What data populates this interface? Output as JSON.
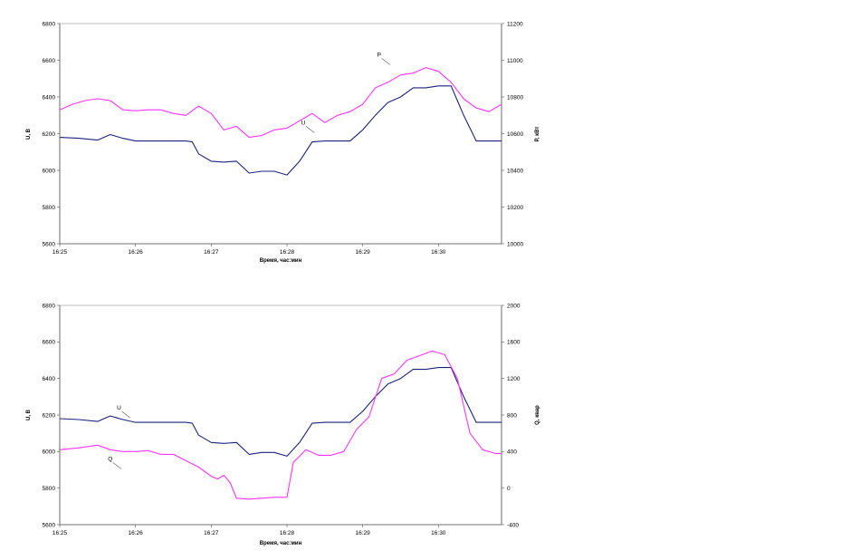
{
  "chart_data": [
    {
      "type": "line",
      "title": "",
      "xlabel": "Время, час:мин",
      "ylabel_left": "U, В",
      "ylabel_right": "P, кВт",
      "x_ticks": [
        "16:25",
        "16:26",
        "16:27",
        "16:28",
        "16:29",
        "16:30"
      ],
      "x_range_minutes": [
        0,
        5.833
      ],
      "ylim_left": [
        5600,
        6800
      ],
      "ylim_right": [
        10000,
        11200
      ],
      "y_ticks_left": [
        "5600",
        "5800",
        "6000",
        "6200",
        "6400",
        "6600",
        "6800"
      ],
      "y_ticks_right": [
        "10000",
        "10200",
        "10400",
        "10600",
        "10800",
        "11000",
        "11200"
      ],
      "grid": false,
      "series": [
        {
          "name": "U",
          "axis": "left",
          "color": "#1a237e",
          "x": [
            "16:25:00",
            "16:25:15",
            "16:25:30",
            "16:25:40",
            "16:25:50",
            "16:26:00",
            "16:26:10",
            "16:26:20",
            "16:26:30",
            "16:26:40",
            "16:26:45",
            "16:26:50",
            "16:27:00",
            "16:27:10",
            "16:27:20",
            "16:27:30",
            "16:27:40",
            "16:27:50",
            "16:28:00",
            "16:28:10",
            "16:28:20",
            "16:28:30",
            "16:28:40",
            "16:28:50",
            "16:29:00",
            "16:29:10",
            "16:29:20",
            "16:29:30",
            "16:29:40",
            "16:29:50",
            "16:30:00",
            "16:30:10",
            "16:30:20",
            "16:30:30",
            "16:30:40",
            "16:30:50"
          ],
          "values": [
            6180,
            6175,
            6165,
            6195,
            6175,
            6160,
            6160,
            6160,
            6160,
            6160,
            6155,
            6090,
            6050,
            6045,
            6050,
            5985,
            5995,
            5995,
            5975,
            6050,
            6155,
            6160,
            6160,
            6160,
            6220,
            6300,
            6370,
            6400,
            6450,
            6450,
            6460,
            6460,
            6300,
            6160,
            6160,
            6160
          ]
        },
        {
          "name": "P",
          "axis": "right",
          "color": "#ff33ff",
          "x": [
            "16:25:00",
            "16:25:10",
            "16:25:20",
            "16:25:30",
            "16:25:40",
            "16:25:50",
            "16:26:00",
            "16:26:10",
            "16:26:20",
            "16:26:30",
            "16:26:40",
            "16:26:50",
            "16:27:00",
            "16:27:10",
            "16:27:20",
            "16:27:30",
            "16:27:40",
            "16:27:50",
            "16:28:00",
            "16:28:10",
            "16:28:20",
            "16:28:30",
            "16:28:40",
            "16:28:50",
            "16:29:00",
            "16:29:10",
            "16:29:20",
            "16:29:30",
            "16:29:40",
            "16:29:50",
            "16:30:00",
            "16:30:10",
            "16:30:20",
            "16:30:30",
            "16:30:40",
            "16:30:50"
          ],
          "values": [
            10730,
            10760,
            10780,
            10790,
            10780,
            10730,
            10725,
            10730,
            10730,
            10710,
            10700,
            10750,
            10710,
            10620,
            10640,
            10580,
            10590,
            10620,
            10630,
            10670,
            10710,
            10660,
            10700,
            10720,
            10760,
            10850,
            10880,
            10920,
            10930,
            10960,
            10940,
            10880,
            10790,
            10740,
            10720,
            10760
          ]
        }
      ],
      "annotations": [
        {
          "text": "P",
          "x": "16:29:13",
          "y_right": 11020
        },
        {
          "text": "U",
          "x": "16:28:13",
          "y_left": 6250
        }
      ]
    },
    {
      "type": "line",
      "title": "",
      "xlabel": "Время, час:мин",
      "ylabel_left": "U, В",
      "ylabel_right": "Q, квар",
      "x_ticks": [
        "16:25",
        "16:26",
        "16:27",
        "16:28",
        "16:29",
        "16:30"
      ],
      "x_range_minutes": [
        0,
        5.833
      ],
      "ylim_left": [
        5600,
        6800
      ],
      "ylim_right": [
        -400,
        2000
      ],
      "y_ticks_left": [
        "5600",
        "5800",
        "6000",
        "6200",
        "6400",
        "6600",
        "6800"
      ],
      "y_ticks_right": [
        "-400",
        "0",
        "400",
        "800",
        "1200",
        "1600",
        "2000"
      ],
      "grid": false,
      "series": [
        {
          "name": "U",
          "axis": "left",
          "color": "#1a237e",
          "x": [
            "16:25:00",
            "16:25:15",
            "16:25:30",
            "16:25:40",
            "16:25:50",
            "16:26:00",
            "16:26:10",
            "16:26:20",
            "16:26:30",
            "16:26:40",
            "16:26:45",
            "16:26:50",
            "16:27:00",
            "16:27:10",
            "16:27:20",
            "16:27:30",
            "16:27:40",
            "16:27:50",
            "16:28:00",
            "16:28:10",
            "16:28:20",
            "16:28:30",
            "16:28:40",
            "16:28:50",
            "16:29:00",
            "16:29:10",
            "16:29:20",
            "16:29:30",
            "16:29:40",
            "16:29:50",
            "16:30:00",
            "16:30:10",
            "16:30:20",
            "16:30:30",
            "16:30:40",
            "16:30:50"
          ],
          "values": [
            6180,
            6175,
            6165,
            6195,
            6175,
            6160,
            6160,
            6160,
            6160,
            6160,
            6155,
            6090,
            6050,
            6045,
            6050,
            5985,
            5995,
            5995,
            5975,
            6050,
            6155,
            6160,
            6160,
            6160,
            6220,
            6300,
            6370,
            6400,
            6450,
            6450,
            6460,
            6460,
            6300,
            6160,
            6160,
            6160
          ]
        },
        {
          "name": "Q",
          "axis": "right",
          "color": "#ff33ff",
          "x": [
            "16:25:00",
            "16:25:15",
            "16:25:30",
            "16:25:40",
            "16:25:50",
            "16:26:00",
            "16:26:10",
            "16:26:20",
            "16:26:30",
            "16:26:40",
            "16:26:50",
            "16:27:00",
            "16:27:05",
            "16:27:10",
            "16:27:15",
            "16:27:20",
            "16:27:30",
            "16:27:40",
            "16:27:50",
            "16:28:00",
            "16:28:05",
            "16:28:15",
            "16:28:25",
            "16:28:35",
            "16:28:45",
            "16:28:55",
            "16:29:05",
            "16:29:15",
            "16:29:25",
            "16:29:35",
            "16:29:45",
            "16:29:55",
            "16:30:05",
            "16:30:15",
            "16:30:25",
            "16:30:35",
            "16:30:45",
            "16:30:50"
          ],
          "values": [
            420,
            440,
            470,
            420,
            400,
            400,
            410,
            370,
            370,
            300,
            230,
            130,
            100,
            140,
            60,
            -110,
            -120,
            -110,
            -100,
            -100,
            280,
            420,
            360,
            360,
            400,
            640,
            780,
            1200,
            1250,
            1400,
            1450,
            1500,
            1460,
            1200,
            600,
            420,
            380,
            380
          ]
        }
      ],
      "annotations": [
        {
          "text": "U",
          "x": "16:25:47",
          "y_left": 6230
        },
        {
          "text": "Q",
          "x": "16:25:40",
          "y_right": 300
        }
      ]
    }
  ]
}
